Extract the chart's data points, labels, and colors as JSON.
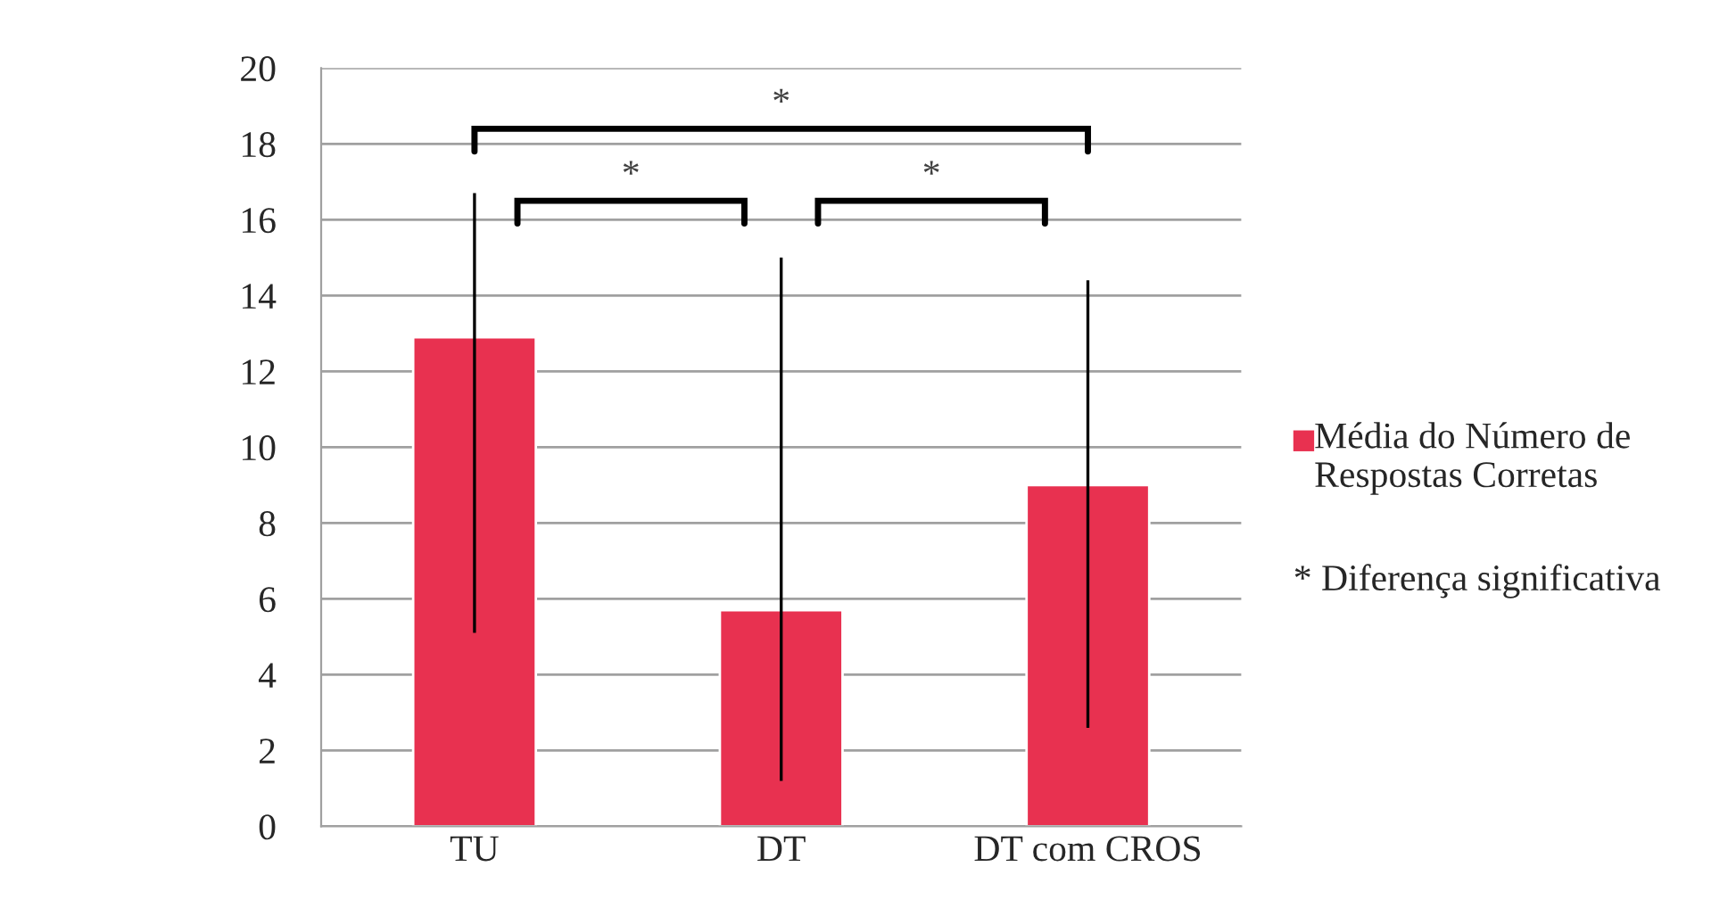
{
  "chart_data": {
    "type": "bar",
    "categories": [
      "TU",
      "DT",
      "DT com CROS"
    ],
    "series": [
      {
        "name": "Média do Número de Respostas Corretas",
        "color": "#e83150",
        "values": [
          12.9,
          5.7,
          9.0
        ],
        "errors": [
          [
            5.1,
            16.7
          ],
          [
            1.2,
            15.0
          ],
          [
            2.6,
            14.4
          ]
        ]
      }
    ],
    "ylim": [
      0,
      20
    ],
    "yticks": [
      0,
      2,
      4,
      6,
      8,
      10,
      12,
      14,
      16,
      18,
      20
    ],
    "grid": "y",
    "legend": "right",
    "annotations": [
      "*",
      "*",
      "*",
      "* Diferença significativa"
    ]
  }
}
